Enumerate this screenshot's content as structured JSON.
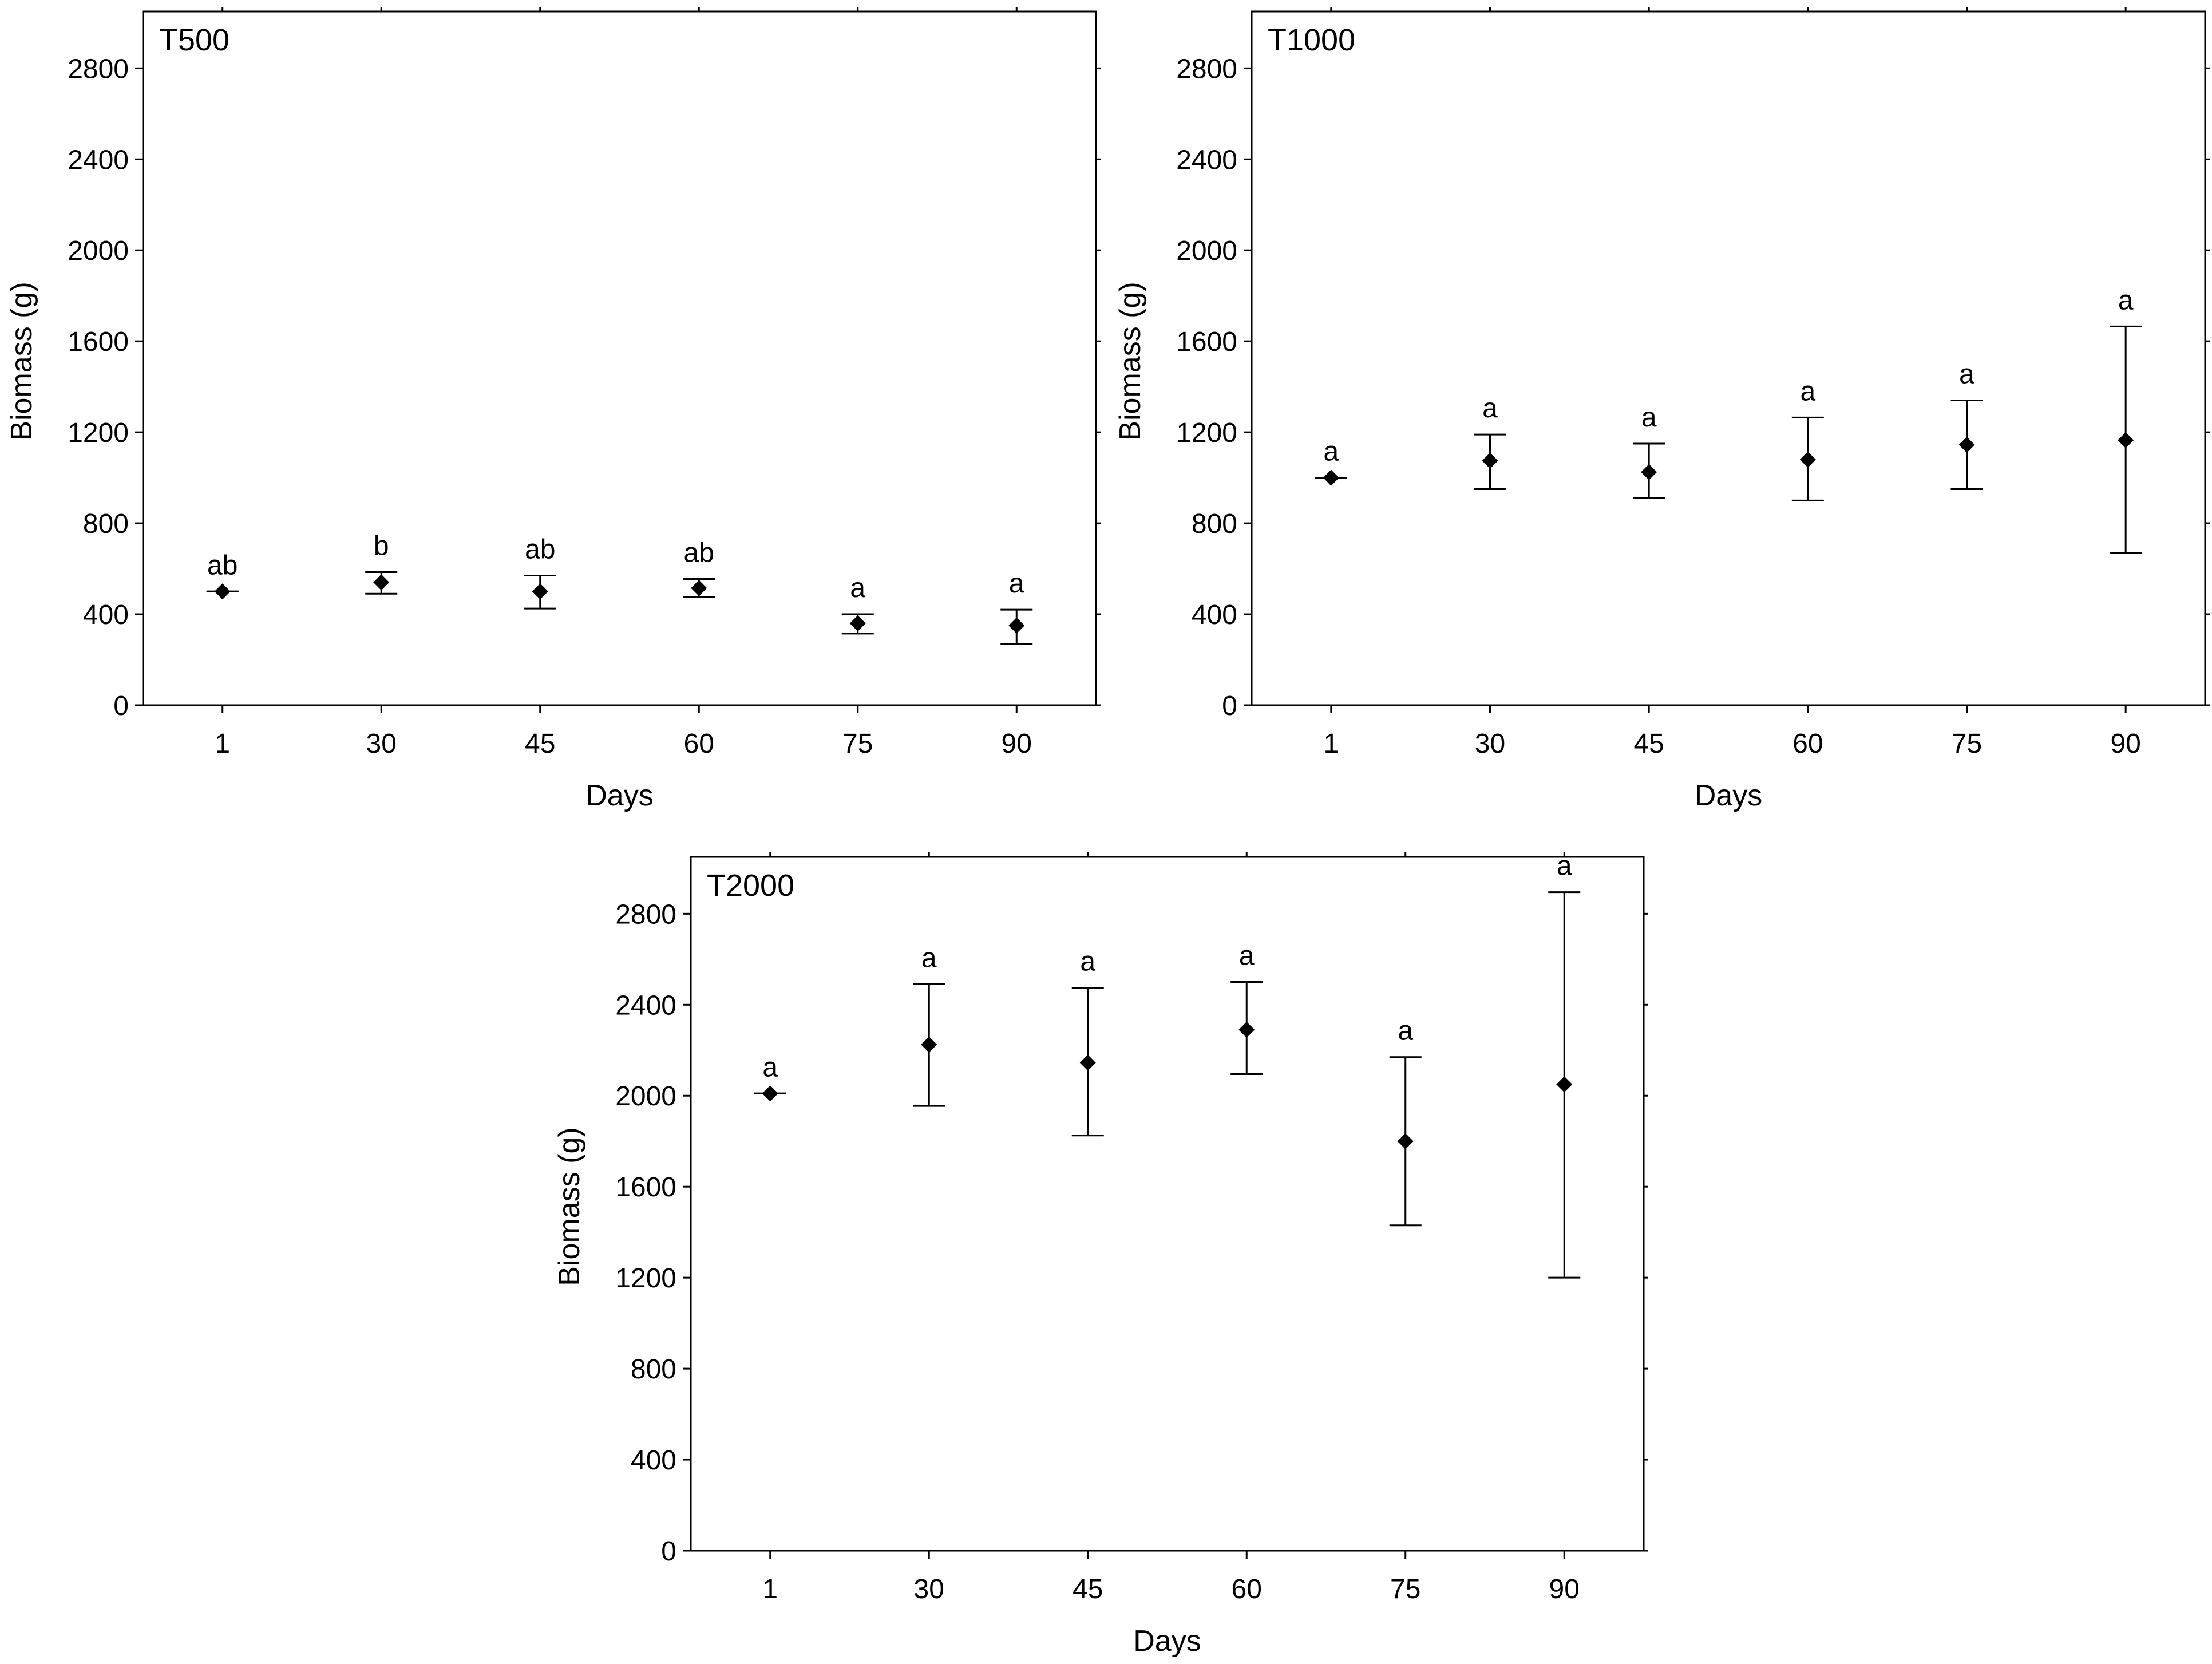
{
  "chart_data": [
    {
      "type": "scatter",
      "panel_label": "T500",
      "xlabel": "Days",
      "ylabel": "Biomass (g)",
      "categories": [
        "1",
        "30",
        "45",
        "60",
        "75",
        "90"
      ],
      "ylim": [
        0,
        3050
      ],
      "yticks": [
        0,
        400,
        800,
        1200,
        1600,
        2000,
        2400,
        2800
      ],
      "values": [
        500,
        540,
        500,
        515,
        360,
        350
      ],
      "error_low": [
        500,
        490,
        425,
        475,
        315,
        270
      ],
      "error_high": [
        500,
        585,
        570,
        555,
        400,
        420
      ],
      "letters": [
        "ab",
        "b",
        "ab",
        "ab",
        "a",
        "a"
      ],
      "marker_color": "#000000"
    },
    {
      "type": "scatter",
      "panel_label": "T1000",
      "xlabel": "Days",
      "ylabel": "Biomass (g)",
      "categories": [
        "1",
        "30",
        "45",
        "60",
        "75",
        "90"
      ],
      "ylim": [
        0,
        3050
      ],
      "yticks": [
        0,
        400,
        800,
        1200,
        1600,
        2000,
        2400,
        2800
      ],
      "values": [
        1000,
        1075,
        1025,
        1080,
        1145,
        1165
      ],
      "error_low": [
        1000,
        950,
        910,
        900,
        950,
        670
      ],
      "error_high": [
        1000,
        1190,
        1150,
        1265,
        1340,
        1665
      ],
      "letters": [
        "a",
        "a",
        "a",
        "a",
        "a",
        "a"
      ],
      "marker_color": "#000000"
    },
    {
      "type": "scatter",
      "panel_label": "T2000",
      "xlabel": "Days",
      "ylabel": "Biomass (g)",
      "categories": [
        "1",
        "30",
        "45",
        "60",
        "75",
        "90"
      ],
      "ylim": [
        0,
        3050
      ],
      "yticks": [
        0,
        400,
        800,
        1200,
        1600,
        2000,
        2400,
        2800
      ],
      "values": [
        2010,
        2225,
        2145,
        2290,
        1800,
        2050
      ],
      "error_low": [
        2010,
        1955,
        1825,
        2095,
        1430,
        1200
      ],
      "error_high": [
        2010,
        2490,
        2475,
        2500,
        2170,
        2895
      ],
      "letters": [
        "a",
        "a",
        "a",
        "a",
        "a",
        "a"
      ],
      "marker_color": "#000000"
    }
  ]
}
